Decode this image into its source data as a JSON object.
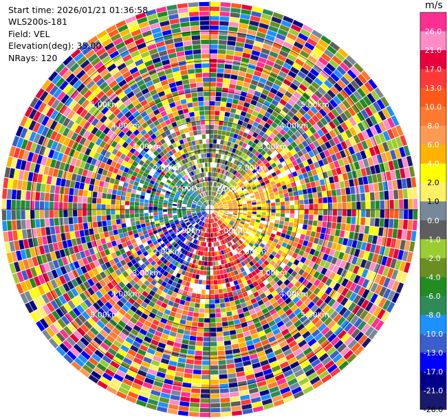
{
  "header": {
    "start_time": "Start time: 2026/01/21 01:36:58",
    "instrument": "WLS200s-181",
    "field": "Field: VEL",
    "elevation": "Elevation(deg): 35.00",
    "nrays": "NRays: 120"
  },
  "chart_data": {
    "type": "heatmap",
    "projection": "polar-ppi",
    "title": "",
    "nrays": 120,
    "max_range_km": 7.0,
    "range_ring_labels": [
      "1.00km",
      "2.00km",
      "3.00km",
      "4.00km",
      "5.00km"
    ],
    "colorbar": {
      "unit": "m/s",
      "ticks": [
        "26.0",
        "21.0",
        "17.0",
        "13.0",
        "10.0",
        "8.0",
        "6.0",
        "4.0",
        "2.0",
        "1.0",
        "0.0",
        "-1.0",
        "-2.0",
        "-4.0",
        "-6.0",
        "-8.0",
        "-10.0",
        "-13.0",
        "-17.0",
        "-21.0",
        "-26.0",
        "-30.0"
      ],
      "colors": [
        "#ff2f92",
        "#ff8cc6",
        "#e8003a",
        "#ff3838",
        "#ff5a1a",
        "#ff7a30",
        "#ff9a52",
        "#ffb300",
        "#ffff00",
        "#fff066",
        "#778899",
        "#5e5e5e",
        "#9acd32",
        "#6b8e23",
        "#228b22",
        "#2e8b57",
        "#1e90ff",
        "#3a5fcd",
        "#0000ff",
        "#00008b",
        "#191970"
      ]
    }
  }
}
